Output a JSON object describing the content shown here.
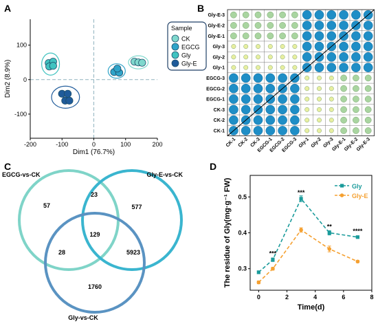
{
  "panels": {
    "a": {
      "letter": "A"
    },
    "b": {
      "letter": "B"
    },
    "c": {
      "letter": "C"
    },
    "d": {
      "letter": "D"
    }
  },
  "chart_data": [
    {
      "type": "scatter",
      "panel": "A",
      "xlabel": "Dim1 (76.7%)",
      "ylabel": "Dim2 (8.9%)",
      "xlim": [
        -200,
        200
      ],
      "ylim": [
        -170,
        175
      ],
      "xticks": [
        -200,
        -100,
        0,
        100,
        200
      ],
      "yticks": [
        -100,
        0,
        100
      ],
      "legend": {
        "title": "Sample",
        "position": "top-right"
      },
      "series": [
        {
          "name": "CK",
          "color": "#7fd8cd",
          "points": [
            [
              128,
              52
            ],
            [
              140,
              50
            ],
            [
              152,
              49
            ]
          ]
        },
        {
          "name": "EGCG",
          "color": "#2fa4c9",
          "points": [
            [
              64,
              22
            ],
            [
              80,
              20
            ],
            [
              74,
              32
            ]
          ]
        },
        {
          "name": "Gly",
          "color": "#40c3c0",
          "points": [
            [
              -142,
              48
            ],
            [
              -128,
              52
            ],
            [
              -140,
              38
            ],
            [
              -128,
              40
            ]
          ]
        },
        {
          "name": "Gly-E",
          "color": "#1f5b9a",
          "points": [
            [
              -100,
              -41
            ],
            [
              -82,
              -41
            ],
            [
              -90,
              -61
            ],
            [
              -77,
              -61
            ]
          ]
        }
      ],
      "ellipses": [
        {
          "group": "CK",
          "cx": 140,
          "cy": 50,
          "rx": 31,
          "ry": 19
        },
        {
          "group": "EGCG",
          "cx": 72,
          "cy": 25,
          "rx": 27,
          "ry": 21
        },
        {
          "group": "Gly",
          "cx": -136,
          "cy": 45,
          "rx": 28,
          "ry": 32
        },
        {
          "group": "Gly-E",
          "cx": -89,
          "cy": -51,
          "rx": 44,
          "ry": 32
        }
      ]
    },
    {
      "type": "heatmap",
      "panel": "B",
      "rows": [
        "Gly-E-3",
        "Gly-E-2",
        "Gly-E-1",
        "Gly-3",
        "Gly-2",
        "Gly-1",
        "EGCG-3",
        "EGCG-2",
        "EGCG-1",
        "CK-3",
        "CK-2",
        "CK-1"
      ],
      "cols": [
        "CK-1",
        "CK-2",
        "CK-3",
        "EGCG-1",
        "EGCG-2",
        "EGCG-3",
        "Gly-1",
        "Gly-2",
        "Gly-3",
        "Gly-E-1",
        "Gly-E-2",
        "Gly-E-3"
      ],
      "legend_levels": {
        "1": {
          "color": "#e8efa0"
        },
        "2": {
          "color": "#a9d5a0"
        },
        "3": {
          "color": "#1f8ec6"
        }
      },
      "levels": [
        [
          2,
          2,
          2,
          2,
          2,
          2,
          3,
          3,
          3,
          3,
          3,
          3
        ],
        [
          2,
          2,
          2,
          2,
          2,
          2,
          3,
          3,
          3,
          3,
          3,
          3
        ],
        [
          2,
          2,
          2,
          2,
          2,
          2,
          3,
          3,
          3,
          3,
          3,
          3
        ],
        [
          1,
          1,
          1,
          1,
          1,
          1,
          3,
          3,
          3,
          3,
          3,
          3
        ],
        [
          1,
          1,
          1,
          1,
          1,
          1,
          3,
          3,
          3,
          3,
          3,
          3
        ],
        [
          1,
          1,
          1,
          1,
          1,
          1,
          3,
          3,
          3,
          3,
          3,
          3
        ],
        [
          3,
          3,
          3,
          3,
          3,
          3,
          1,
          1,
          1,
          2,
          2,
          2
        ],
        [
          3,
          3,
          3,
          3,
          3,
          3,
          1,
          1,
          1,
          2,
          2,
          2
        ],
        [
          3,
          3,
          3,
          3,
          3,
          3,
          1,
          1,
          1,
          2,
          2,
          2
        ],
        [
          3,
          3,
          3,
          3,
          3,
          3,
          1,
          1,
          1,
          2,
          2,
          2
        ],
        [
          3,
          3,
          3,
          3,
          3,
          3,
          1,
          1,
          1,
          2,
          2,
          2
        ],
        [
          3,
          3,
          3,
          3,
          3,
          3,
          1,
          1,
          1,
          2,
          2,
          2
        ]
      ]
    },
    {
      "type": "venn",
      "panel": "C",
      "sets": [
        {
          "name": "EGCG-vs-CK",
          "color": "#7fd4c8"
        },
        {
          "name": "Gly-E-vs-CK",
          "color": "#3ab5cf"
        },
        {
          "name": "Gly-vs-CK",
          "color": "#5a93c2"
        }
      ],
      "regions": [
        {
          "sets": [
            "EGCG-vs-CK"
          ],
          "value": "57"
        },
        {
          "sets": [
            "EGCG-vs-CK",
            "Gly-E-vs-CK"
          ],
          "value": "23"
        },
        {
          "sets": [
            "Gly-E-vs-CK"
          ],
          "value": "577"
        },
        {
          "sets": [
            "EGCG-vs-CK",
            "Gly-E-vs-CK",
            "Gly-vs-CK"
          ],
          "value": "129"
        },
        {
          "sets": [
            "EGCG-vs-CK",
            "Gly-vs-CK"
          ],
          "value": "28"
        },
        {
          "sets": [
            "Gly-E-vs-CK",
            "Gly-vs-CK"
          ],
          "value": "5923"
        },
        {
          "sets": [
            "Gly-vs-CK"
          ],
          "value": "1760"
        }
      ]
    },
    {
      "type": "line",
      "panel": "D",
      "xlabel": "Time(d)",
      "ylabel": "The residue of Gly(mg·g⁻¹ FW)",
      "xlim": [
        -0.6,
        8
      ],
      "ylim": [
        0.24,
        0.56
      ],
      "xticks": [
        0,
        2,
        4,
        6,
        8
      ],
      "yticks": [
        0.3,
        0.4,
        0.5
      ],
      "legend": {
        "position": "top-right"
      },
      "x": [
        0,
        1,
        3,
        5,
        7
      ],
      "series": [
        {
          "name": "Gly",
          "color": "#1a9b9b",
          "values": [
            0.29,
            0.325,
            0.495,
            0.4,
            0.388
          ],
          "errors": [
            0.004,
            0.005,
            0.008,
            0.006,
            0.003
          ]
        },
        {
          "name": "Gly-E",
          "color": "#f5a030",
          "values": [
            0.262,
            0.3,
            0.408,
            0.355,
            0.32
          ],
          "errors": [
            0.004,
            0.004,
            0.006,
            0.008,
            0.003
          ]
        }
      ],
      "annotations": [
        {
          "x": 1,
          "y": 0.325,
          "text": "***"
        },
        {
          "x": 3,
          "y": 0.495,
          "text": "***"
        },
        {
          "x": 5,
          "y": 0.4,
          "text": "**"
        },
        {
          "x": 7,
          "y": 0.388,
          "text": "****"
        }
      ]
    }
  ]
}
